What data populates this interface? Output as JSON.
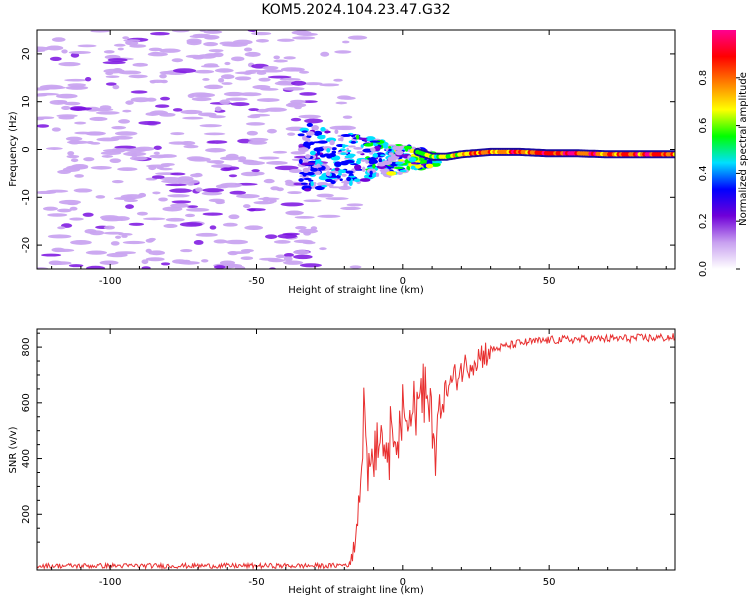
{
  "title": "KOM5.2024.104.23.47.G32",
  "chart_data": [
    {
      "type": "heatmap",
      "xlabel": "Height of straight line (km)",
      "ylabel": "Frequency (Hz)",
      "xlim": [
        -125,
        93
      ],
      "ylim": [
        -25,
        25
      ],
      "xticks": [
        -100,
        -50,
        0,
        50
      ],
      "yticks": [
        -20,
        -10,
        0,
        10,
        20
      ],
      "colorbar": {
        "label": "Normalized spectral amplitude",
        "range": [
          0,
          1
        ],
        "ticks": [
          "0.0",
          "0.2",
          "0.4",
          "0.6",
          "0.8"
        ],
        "colormap": [
          "#ffffff",
          "#c8a0f0",
          "#7000d8",
          "#0000ff",
          "#00e0ff",
          "#00ff00",
          "#ffff00",
          "#ff8000",
          "#ff0000",
          "#ff0090"
        ]
      },
      "features": {
        "background_speckle": {
          "x_range": [
            -125,
            -35
          ],
          "freq_range": [
            -25,
            25
          ],
          "amplitude": 0.12
        },
        "mixing_zone": {
          "x_range": [
            -35,
            12
          ],
          "freq_range": [
            -10,
            6
          ],
          "amplitude": 0.35
        },
        "line_track": {
          "x": [
            5,
            10,
            15,
            20,
            30,
            40,
            50,
            60,
            70,
            80,
            93
          ],
          "freq": [
            -0.5,
            -1.5,
            -1.5,
            -1.0,
            -0.5,
            -0.5,
            -0.8,
            -0.8,
            -1.0,
            -1.0,
            -1.0
          ],
          "amplitude": [
            0.6,
            0.5,
            0.55,
            0.65,
            0.75,
            0.8,
            0.8,
            0.85,
            0.75,
            0.8,
            0.7
          ]
        }
      }
    },
    {
      "type": "line",
      "xlabel": "Height of straight line (km)",
      "ylabel": "SNR (v/v)",
      "xlim": [
        -125,
        93
      ],
      "ylim": [
        0,
        865
      ],
      "xticks": [
        -100,
        -50,
        0,
        50
      ],
      "yticks": [
        200,
        400,
        600,
        800
      ],
      "color": "#e83030",
      "x": [
        -125,
        -100,
        -75,
        -50,
        -25,
        -18,
        -16,
        -14,
        -13,
        -12,
        -10,
        -8,
        -5,
        -3,
        0,
        3,
        5,
        8,
        10,
        11,
        12,
        15,
        20,
        25,
        30,
        40,
        50,
        60,
        70,
        80,
        93
      ],
      "y": [
        15,
        15,
        15,
        15,
        15,
        20,
        150,
        400,
        600,
        350,
        450,
        500,
        440,
        500,
        550,
        560,
        600,
        620,
        500,
        450,
        560,
        650,
        720,
        760,
        790,
        815,
        825,
        828,
        830,
        832,
        835
      ]
    }
  ]
}
